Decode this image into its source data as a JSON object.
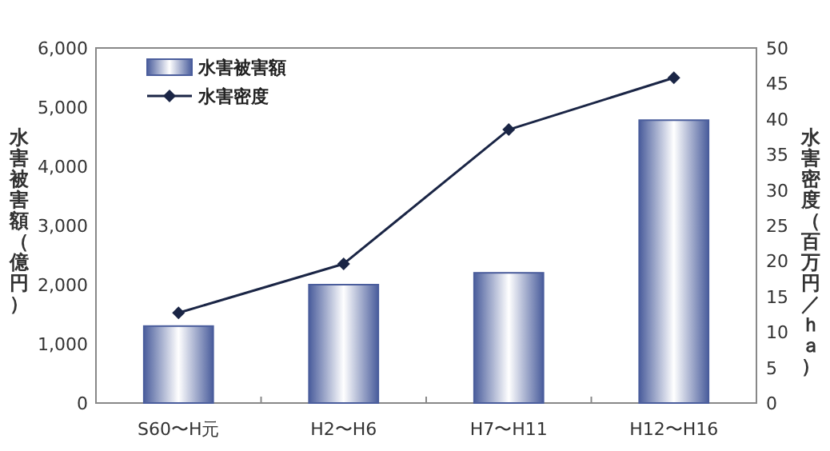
{
  "chart_data": {
    "type": "bar",
    "categories": [
      "S60〜H元",
      "H2〜H6",
      "H7〜H11",
      "H12〜H16"
    ],
    "ylabel": "水害被害額（億円）",
    "y2label": "水害密度（百万円／ｈａ）",
    "ylim": [
      0,
      6000
    ],
    "yticks": [
      {
        "value": 0,
        "label": "0"
      },
      {
        "value": 1000,
        "label": "1,000"
      },
      {
        "value": 2000,
        "label": "2,000"
      },
      {
        "value": 3000,
        "label": "3,000"
      },
      {
        "value": 4000,
        "label": "4,000"
      },
      {
        "value": 5000,
        "label": "5,000"
      },
      {
        "value": 6000,
        "label": "6,000"
      }
    ],
    "y2lim": [
      0,
      50
    ],
    "y2ticks": [
      0,
      5,
      10,
      15,
      20,
      25,
      30,
      35,
      40,
      45,
      50
    ],
    "legend": "top left",
    "grid": false,
    "series": [
      {
        "name": "水害被害額",
        "color": "#4a5d9c",
        "values": [
          1300,
          2000,
          2200,
          4780
        ]
      },
      {
        "name": "水害密度",
        "type": "line",
        "axis": "y2",
        "color": "#1a2545",
        "marker": "diamond",
        "values": [
          12.7,
          19.6,
          38.5,
          45.8
        ]
      }
    ]
  }
}
